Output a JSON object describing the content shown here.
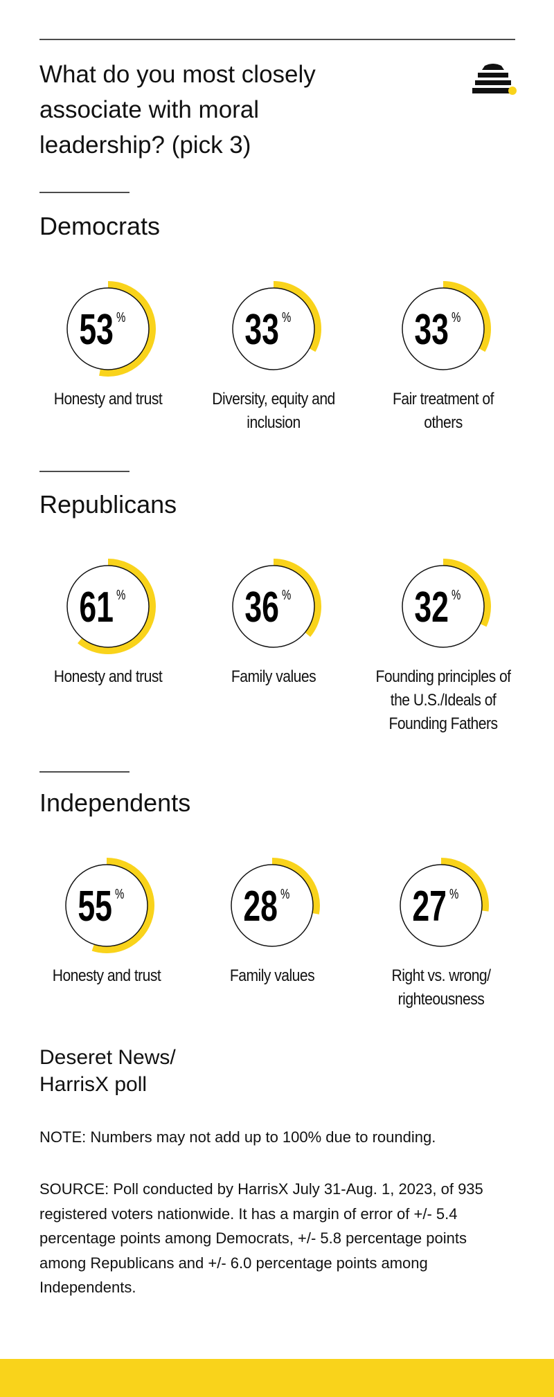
{
  "header": {
    "title_lines": [
      "What do you most closely",
      "associate with moral",
      "leadership? (pick 3)"
    ]
  },
  "unit": "%",
  "chart_data": [
    {
      "type": "radial",
      "title": "Democrats",
      "categories": [
        "Honesty and trust",
        "Diversity, equity and inclusion",
        "Fair treatment of others"
      ],
      "values": [
        53,
        33,
        33
      ],
      "color": "#f9d31b",
      "ylim": [
        0,
        100
      ]
    },
    {
      "type": "radial",
      "title": "Republicans",
      "categories": [
        "Honesty and trust",
        "Family values",
        "Founding principles of the U.S./Ideals of Founding Fathers"
      ],
      "values": [
        61,
        36,
        32
      ],
      "color": "#f9d31b",
      "ylim": [
        0,
        100
      ]
    },
    {
      "type": "radial",
      "title": "Independents",
      "categories": [
        "Honesty and trust",
        "Family values",
        "Right vs. wrong/ righteousness"
      ],
      "values": [
        55,
        28,
        27
      ],
      "color": "#f9d31b",
      "ylim": [
        0,
        100
      ]
    }
  ],
  "footer": {
    "credit_lines": [
      "Deseret News/",
      "HarrisX poll"
    ],
    "note": "NOTE: Numbers may not add up to 100% due to rounding.",
    "source": "SOURCE: Poll conducted by HarrisX July 31-Aug. 1, 2023, of 935 registered voters nationwide. It has a margin of error of +/- 5.4 percentage points among Democrats, +/- 5.8 percentage points among Republicans and +/- 6.0 percentage points among Independents."
  }
}
